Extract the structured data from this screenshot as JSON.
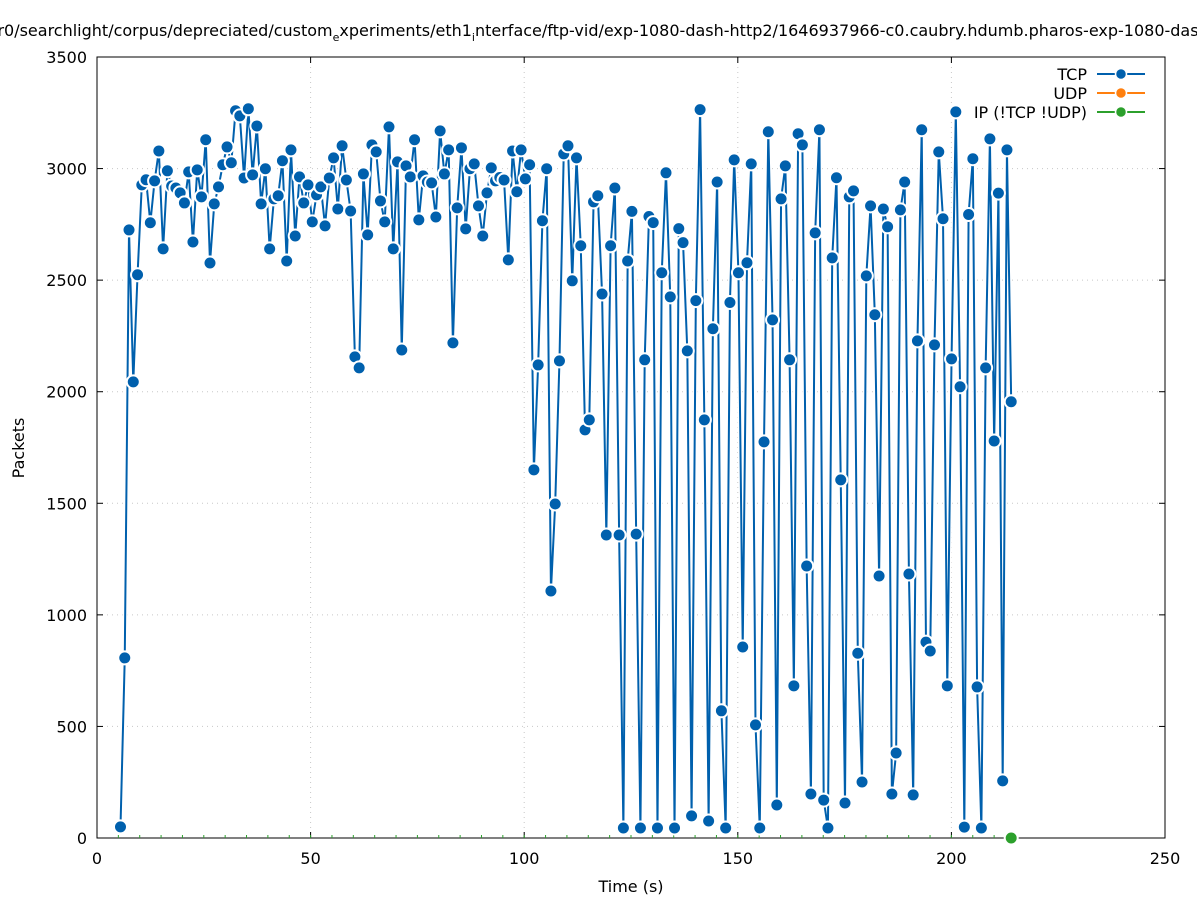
{
  "chart_data": {
    "type": "line",
    "title": "r0/searchlight/corpus/depreciated/custom_experiments/eth1_interface/ftp-vid/exp-1080-dash-http2/1646937966-c0.caubry.hdumb.pharos-exp-1080-das",
    "xlabel": "Time (s)",
    "ylabel": "Packets",
    "xlim": [
      0,
      250
    ],
    "ylim": [
      0,
      3500
    ],
    "xticks": [
      "0",
      "50",
      "100",
      "150",
      "200",
      "250"
    ],
    "yticks": [
      "0",
      "500",
      "1000",
      "1500",
      "2000",
      "2500",
      "3000",
      "3500"
    ],
    "grid": true,
    "legend_position": "top-right",
    "series": [
      {
        "name": "TCP",
        "color": "#0060ad",
        "x_first": 5.5,
        "x_last": 214,
        "values": [
          50,
          807,
          2725,
          2044,
          2524,
          2927,
          2950,
          2757,
          2945,
          3079,
          2640,
          2990,
          2922,
          2913,
          2891,
          2846,
          2985,
          2671,
          2994,
          2873,
          3129,
          2577,
          2842,
          2918,
          3017,
          3097,
          3026,
          3259,
          3236,
          2958,
          3268,
          2972,
          3191,
          2842,
          2999,
          2640,
          2864,
          2878,
          3035,
          2586,
          3084,
          2698,
          2963,
          2846,
          2927,
          2761,
          2882,
          2918,
          2743,
          2958,
          3048,
          2819,
          3102,
          2949,
          2810,
          2156,
          2107,
          2976,
          2703,
          3106,
          3075,
          2855,
          2761,
          3187,
          2640,
          3030,
          2187,
          3012,
          2963,
          3129,
          2770,
          2967,
          2940,
          2936,
          2783,
          3169,
          2976,
          3084,
          2219,
          2824,
          3093,
          2730,
          2999,
          3021,
          2833,
          2698,
          2891,
          3003,
          2945,
          2960,
          2949,
          2591,
          3079,
          2896,
          3084,
          2954,
          3017,
          1650,
          2120,
          2766,
          2999,
          1107,
          1497,
          2138,
          3066,
          3102,
          2497,
          3048,
          2654,
          1829,
          1874,
          2851,
          2878,
          2438,
          1358,
          2654,
          2913,
          1358,
          45,
          2586,
          2808,
          1362,
          45,
          2143,
          2785,
          2758,
          45,
          2533,
          2981,
          2425,
          45,
          2731,
          2668,
          2183,
          99,
          2408,
          3264,
          1874,
          76,
          2282,
          2940,
          570,
          45,
          2400,
          3039,
          2533,
          856,
          2578,
          3021,
          507,
          45,
          1775,
          3165,
          2322,
          148,
          2864,
          3012,
          2143,
          682,
          3156,
          3106,
          1219,
          197,
          2712,
          3174,
          170,
          45,
          2600,
          2959,
          1605,
          157,
          2873,
          2900,
          828,
          251,
          2519,
          2833,
          2345,
          1174,
          2819,
          2739,
          197,
          381,
          2815,
          2940,
          1183,
          193,
          2228,
          3174,
          878,
          838,
          2210,
          3075,
          2775,
          682,
          2147,
          3254,
          2022,
          49,
          2794,
          3044,
          677,
          45,
          2107,
          3133,
          1779,
          2890,
          256,
          3084,
          1955
        ]
      },
      {
        "name": "UDP",
        "color": "#ff7f0e",
        "x": [],
        "values": []
      },
      {
        "name": "IP (!TCP  !UDP)",
        "color": "#2ca02c",
        "x": [
          214
        ],
        "values": [
          0
        ]
      }
    ]
  }
}
